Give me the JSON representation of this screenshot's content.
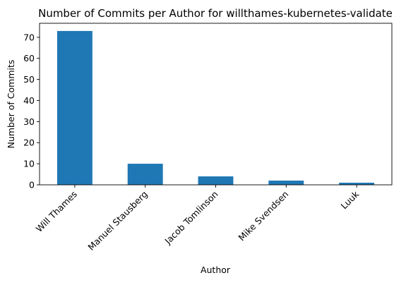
{
  "chart_data": {
    "type": "bar",
    "title": "Number of Commits per Author for willthames-kubernetes-validate",
    "xlabel": "Author",
    "ylabel": "Number of Commits",
    "categories": [
      "Will Thames",
      "Manuel Stausberg",
      "Jacob Tomlinson",
      "Mike Svendsen",
      "Luuk"
    ],
    "values": [
      73,
      10,
      4,
      2,
      1
    ],
    "ylim": [
      0,
      76.65
    ],
    "yticks": [
      0,
      10,
      20,
      30,
      40,
      50,
      60,
      70
    ],
    "grid": false,
    "legend": "none",
    "bar_color": "#1f77b4"
  }
}
